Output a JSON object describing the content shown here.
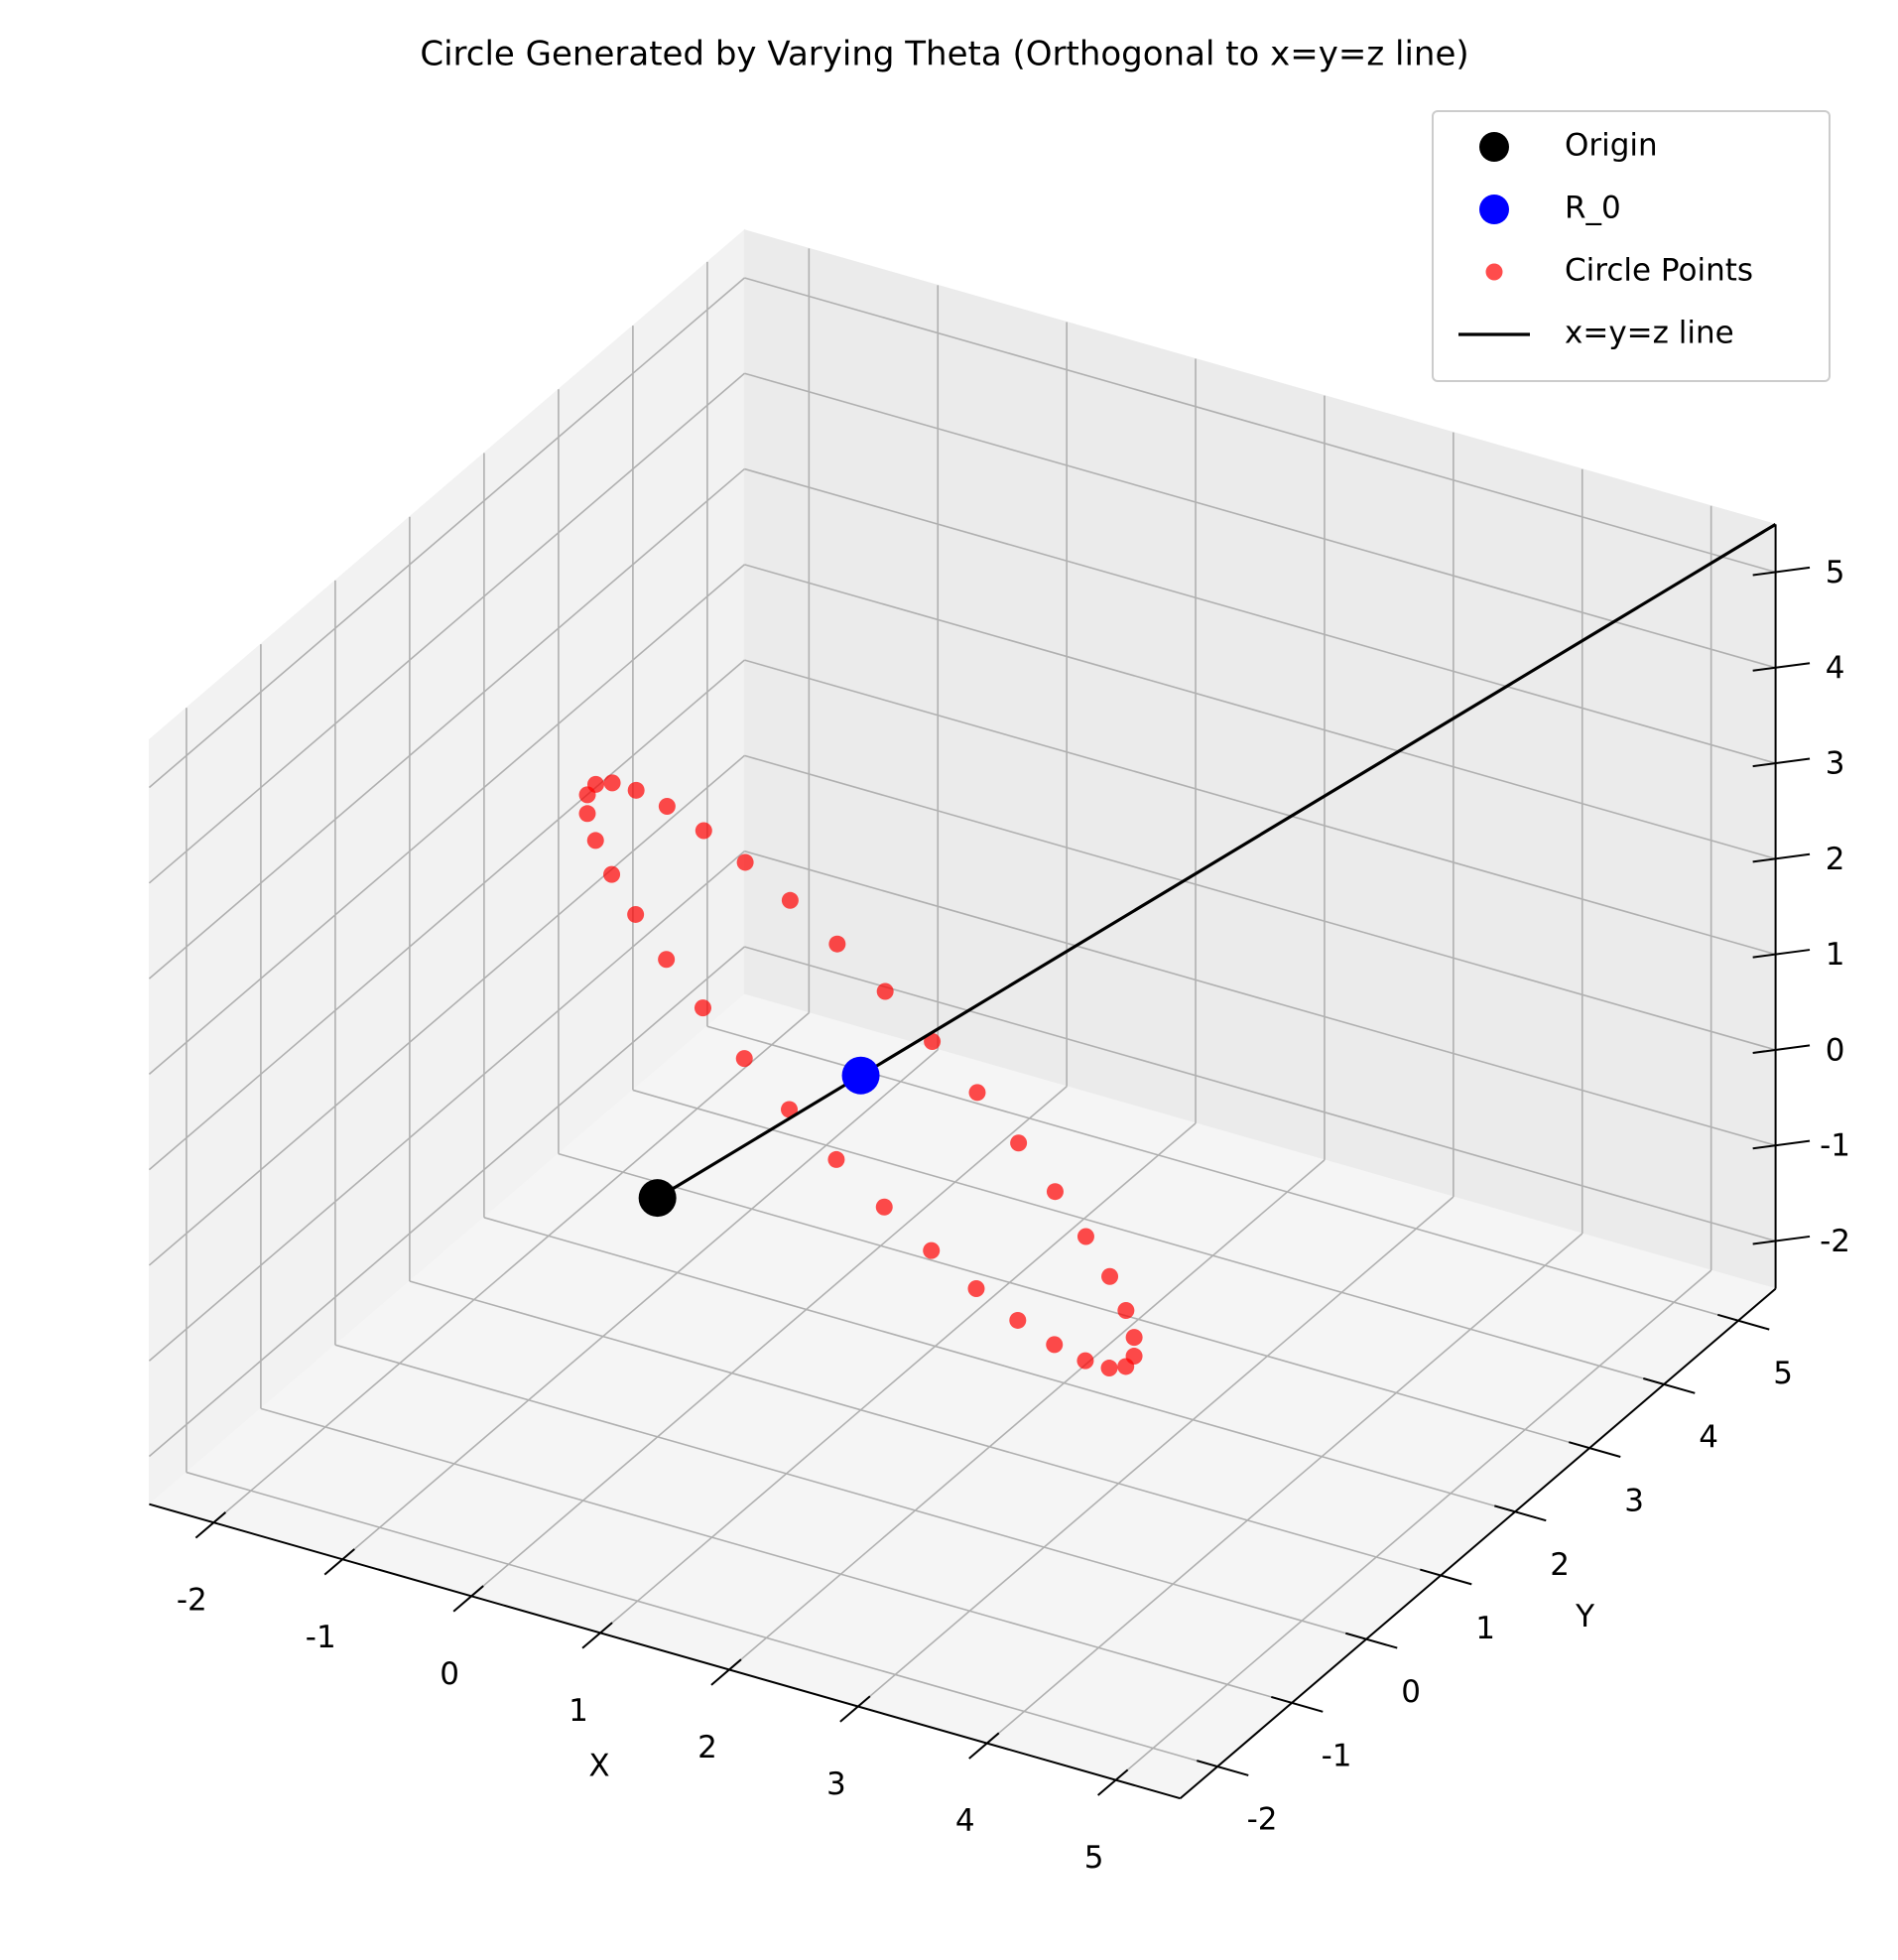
{
  "chart_data": {
    "type": "scatter3d",
    "title": "Circle Generated by Varying Theta (Orthogonal to x=y=z line)",
    "xlabel": "X",
    "ylabel": "Y",
    "xlim": [
      -2.5,
      5.5
    ],
    "ylim": [
      -2.5,
      5.5
    ],
    "zlim": [
      -2.5,
      5.5
    ],
    "xticks": [
      -2,
      -1,
      0,
      1,
      2,
      3,
      4,
      5
    ],
    "yticks": [
      -2,
      -1,
      0,
      1,
      2,
      3,
      4,
      5
    ],
    "zticks": [
      -2,
      -1,
      0,
      1,
      2,
      3,
      4,
      5
    ],
    "grid": true,
    "legend": "upper right",
    "series": [
      {
        "name": "Origin",
        "color": "#000000",
        "kind": "scatter",
        "x": [
          0
        ],
        "y": [
          0
        ],
        "z": [
          0
        ]
      },
      {
        "name": "R_0",
        "color": "#0000ff",
        "kind": "scatter",
        "x": [
          1
        ],
        "y": [
          1
        ],
        "z": [
          1
        ]
      },
      {
        "name": "Circle Points",
        "color": "#ff0000",
        "kind": "scatter",
        "alpha": 0.7,
        "x": [
          3.121,
          3.302,
          3.412,
          3.45,
          3.412,
          3.302,
          3.121,
          2.876,
          2.574,
          2.225,
          1.838,
          1.425,
          1.0,
          0.575,
          0.162,
          -0.225,
          -0.575,
          -0.877,
          -1.121,
          -1.302,
          -1.412,
          -1.45,
          -1.412,
          -1.302,
          -1.121,
          -0.876,
          -0.574,
          -0.225,
          0.162,
          0.575,
          1.0,
          1.426,
          1.838,
          2.225,
          2.575,
          2.877
        ],
        "y": [
          -1.121,
          -0.877,
          -0.575,
          -0.225,
          0.162,
          0.575,
          1.0,
          1.425,
          1.838,
          2.225,
          2.574,
          2.876,
          3.121,
          3.302,
          3.412,
          3.45,
          3.412,
          3.302,
          3.121,
          2.877,
          2.575,
          2.225,
          1.838,
          1.426,
          1.0,
          0.575,
          0.162,
          -0.225,
          -0.574,
          -0.876,
          -1.121,
          -1.302,
          -1.412,
          -1.45,
          -1.412,
          -1.302
        ],
        "z": [
          1,
          0.575,
          0.162,
          -0.225,
          -0.575,
          -0.876,
          -1.121,
          -1.302,
          -1.412,
          -1.449,
          -1.412,
          -1.302,
          -1.121,
          -0.876,
          -0.575,
          -0.225,
          0.162,
          0.575,
          1,
          1.425,
          1.838,
          2.225,
          2.575,
          2.876,
          3.121,
          3.302,
          3.412,
          3.449,
          3.412,
          3.302,
          3.121,
          2.876,
          2.575,
          2.225,
          1.838,
          1.425
        ]
      },
      {
        "name": "x=y=z line",
        "color": "#000000",
        "kind": "line",
        "x": [
          0,
          5.5
        ],
        "y": [
          0,
          5.5
        ],
        "z": [
          0,
          5.5
        ]
      }
    ]
  }
}
